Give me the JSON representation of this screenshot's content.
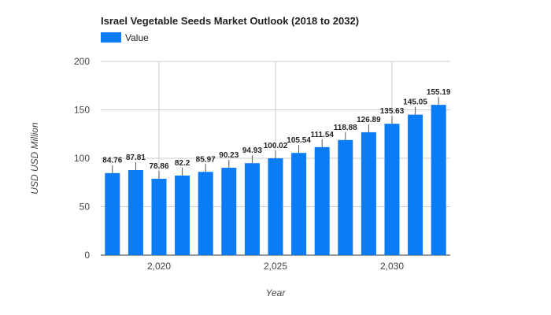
{
  "chart_data": {
    "type": "bar",
    "title": "Israel Vegetable Seeds Market Outlook (2018 to 2032)",
    "xlabel": "Year",
    "ylabel": "USD USD Million",
    "legend": {
      "position": "top-left",
      "entries": [
        "Value"
      ]
    },
    "grid": true,
    "ylim": [
      0,
      200
    ],
    "yticks": [
      "0",
      "50",
      "100",
      "150",
      "200"
    ],
    "xticks": [
      {
        "value": 2020,
        "label": "2,020"
      },
      {
        "value": 2025,
        "label": "2,025"
      },
      {
        "value": 2030,
        "label": "2,030"
      }
    ],
    "x": [
      2018,
      2019,
      2020,
      2021,
      2022,
      2023,
      2024,
      2025,
      2026,
      2027,
      2028,
      2029,
      2030,
      2031,
      2032
    ],
    "series": [
      {
        "name": "Value",
        "color": "#0a7cf5",
        "values": [
          84.76,
          87.81,
          78.86,
          82.2,
          85.97,
          90.23,
          94.93,
          100.02,
          105.54,
          111.54,
          118.88,
          126.89,
          135.63,
          145.05,
          155.19
        ],
        "labels": [
          "84.76",
          "87.81",
          "78.86",
          "82.2",
          "85.97",
          "90.23",
          "94.93",
          "100.02",
          "105.54",
          "111.54",
          "118.88",
          "126.89",
          "135.63",
          "145.05",
          "155.19"
        ]
      }
    ]
  }
}
